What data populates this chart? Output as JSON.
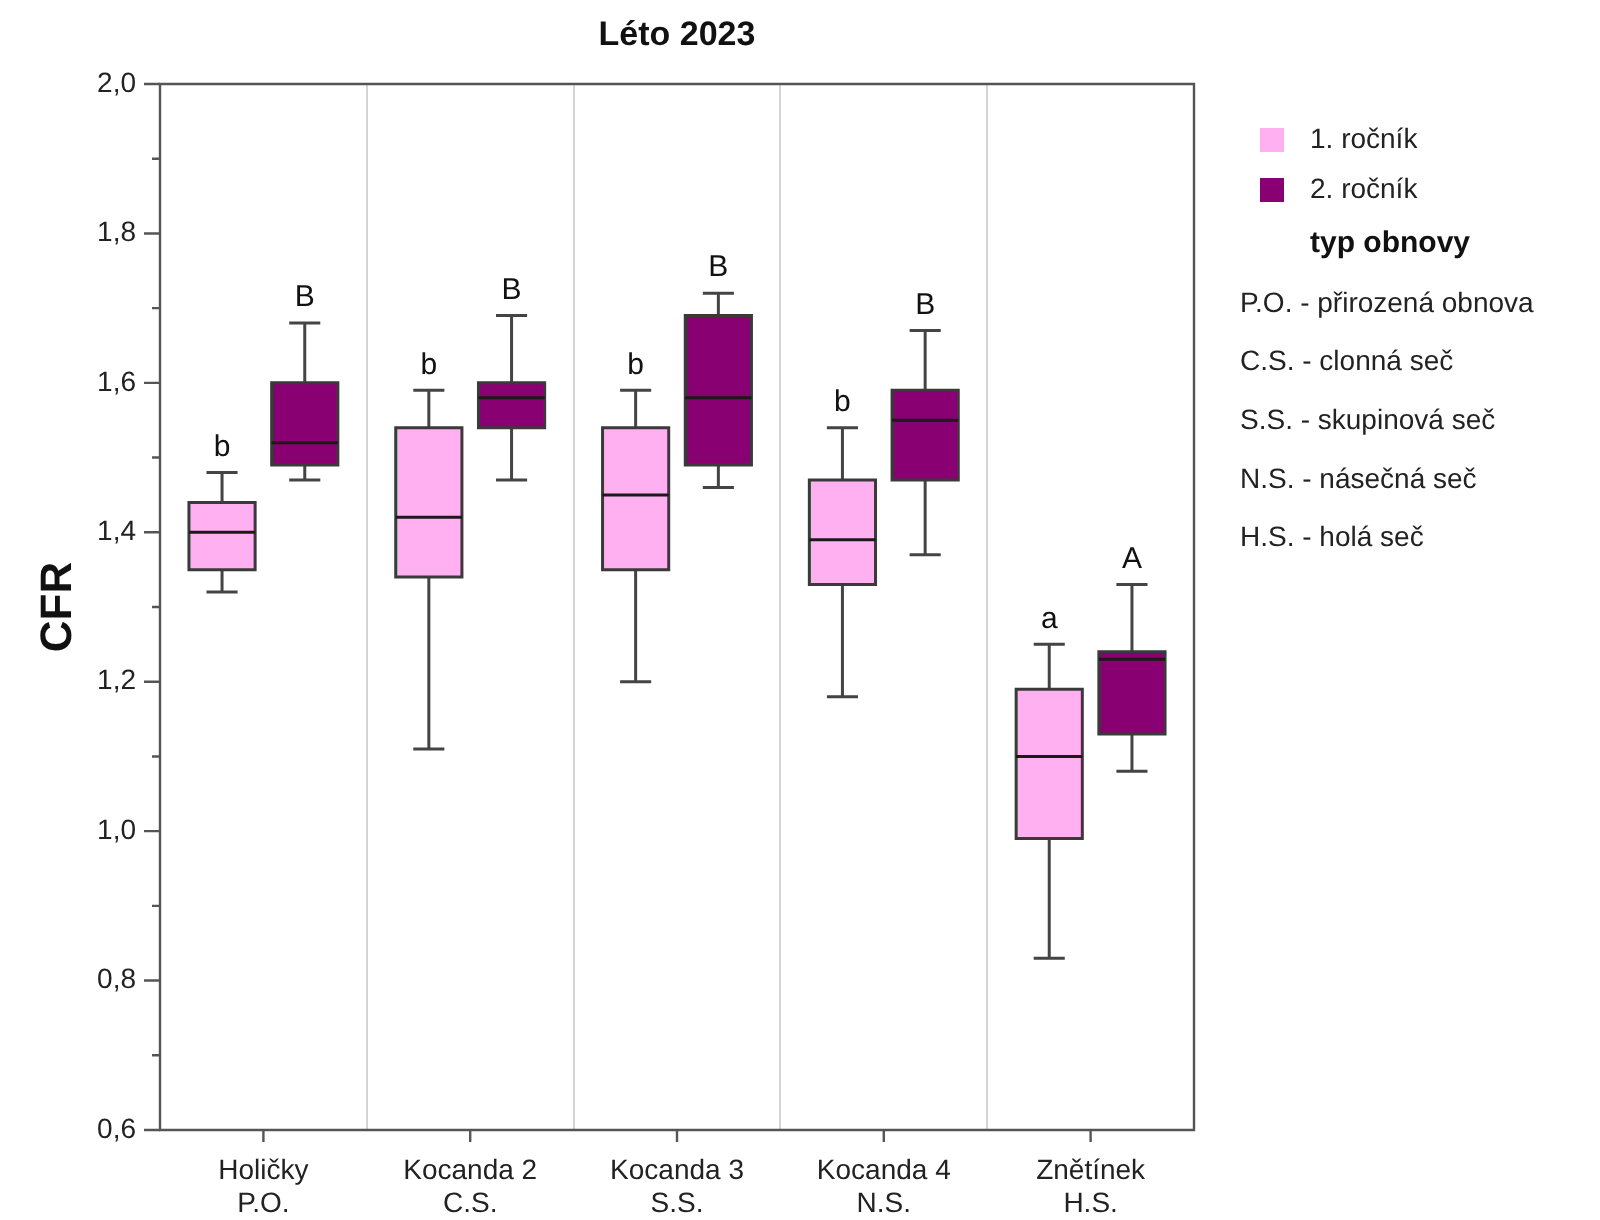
{
  "chart_data": {
    "type": "box",
    "title": "Léto 2023",
    "ylabel": "CFR",
    "legend_title": "typ obnovy",
    "categories": [
      "Holičky\nP.O.",
      "Kocanda 2\nC.S.",
      "Kocanda 3\nS.S.",
      "Kocanda 4\nN.S.",
      "Znětínek\nH.S."
    ],
    "series": [
      {
        "name": "1. ročník",
        "color": "#ffb0f0",
        "boxes": [
          {
            "low": 1.32,
            "q1": 1.35,
            "median": 1.4,
            "q3": 1.44,
            "high": 1.48
          },
          {
            "low": 1.11,
            "q1": 1.34,
            "median": 1.42,
            "q3": 1.54,
            "high": 1.59
          },
          {
            "low": 1.2,
            "q1": 1.35,
            "median": 1.45,
            "q3": 1.54,
            "high": 1.59
          },
          {
            "low": 1.18,
            "q1": 1.33,
            "median": 1.39,
            "q3": 1.47,
            "high": 1.54
          },
          {
            "low": 0.83,
            "q1": 0.99,
            "median": 1.1,
            "q3": 1.19,
            "high": 1.25
          }
        ],
        "value_labels": [
          "b",
          "b",
          "b",
          "b",
          "a"
        ]
      },
      {
        "name": "2. ročník",
        "color": "#880071",
        "boxes": [
          {
            "low": 1.47,
            "q1": 1.49,
            "median": 1.52,
            "q3": 1.6,
            "high": 1.68
          },
          {
            "low": 1.47,
            "q1": 1.54,
            "median": 1.58,
            "q3": 1.6,
            "high": 1.69
          },
          {
            "low": 1.46,
            "q1": 1.49,
            "median": 1.58,
            "q3": 1.69,
            "high": 1.72
          },
          {
            "low": 1.37,
            "q1": 1.47,
            "median": 1.55,
            "q3": 1.59,
            "high": 1.67
          },
          {
            "low": 1.08,
            "q1": 1.13,
            "median": 1.23,
            "q3": 1.24,
            "high": 1.33
          }
        ],
        "value_labels": [
          "B",
          "B",
          "B",
          "B",
          "A"
        ]
      }
    ],
    "ylim": [
      0.6,
      2.0
    ],
    "yticks": [
      {
        "value": 0.6,
        "label": "0,6"
      },
      {
        "value": 0.7,
        "label": null
      },
      {
        "value": 0.8,
        "label": "0,8"
      },
      {
        "value": 0.9,
        "label": null
      },
      {
        "value": 1.0,
        "label": "1,0"
      },
      {
        "value": 1.1,
        "label": null
      },
      {
        "value": 1.2,
        "label": "1,2"
      },
      {
        "value": 1.3,
        "label": null
      },
      {
        "value": 1.4,
        "label": "1,4"
      },
      {
        "value": 1.5,
        "label": null
      },
      {
        "value": 1.6,
        "label": "1,6"
      },
      {
        "value": 1.7,
        "label": null
      },
      {
        "value": 1.8,
        "label": "1,8"
      },
      {
        "value": 1.9,
        "label": null
      },
      {
        "value": 2.0,
        "label": "2,0"
      }
    ],
    "grid": "x",
    "legend": "top right",
    "annotations": [
      "P.O. - přirozená obnova",
      "C.S. - clonná seč",
      "S.S. - skupinová seč",
      "N.S. - násečná seč",
      "H.S. - holá seč"
    ]
  }
}
